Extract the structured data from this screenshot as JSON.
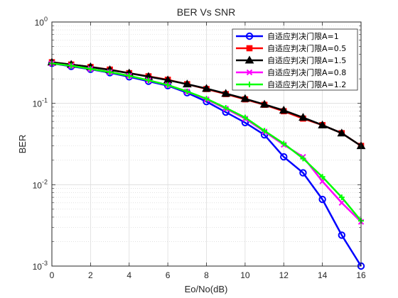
{
  "chart_data": {
    "type": "line",
    "title": "BER Vs SNR",
    "xlabel": "Eo/No(dB)",
    "ylabel": "BER",
    "xlim": [
      0,
      16
    ],
    "ylim": [
      0.001,
      1
    ],
    "yscale": "log",
    "grid": true,
    "legend_position": "top-right",
    "x_ticks": [
      "0",
      "2",
      "4",
      "6",
      "8",
      "10",
      "12",
      "14",
      "16"
    ],
    "y_ticks": [
      {
        "base": "10",
        "exp": "0"
      },
      {
        "base": "10",
        "exp": "-1"
      },
      {
        "base": "10",
        "exp": "-2"
      },
      {
        "base": "10",
        "exp": "-3"
      }
    ],
    "x": [
      0,
      1,
      2,
      3,
      4,
      5,
      6,
      7,
      8,
      9,
      10,
      11,
      12,
      13,
      14,
      15,
      16
    ],
    "series": [
      {
        "name": "自适应判决门限A=1",
        "color": "#0000ff",
        "marker": "circle",
        "values": [
          0.31,
          0.285,
          0.262,
          0.238,
          0.212,
          0.187,
          0.165,
          0.135,
          0.105,
          0.078,
          0.058,
          0.041,
          0.022,
          0.014,
          0.0066,
          0.0024,
          0.001
        ]
      },
      {
        "name": "自适应判决门限A=0.5",
        "color": "#ff0000",
        "marker": "square",
        "values": [
          0.32,
          0.3,
          0.28,
          0.26,
          0.235,
          0.215,
          0.195,
          0.172,
          0.15,
          0.13,
          0.112,
          0.096,
          0.08,
          0.065,
          0.054,
          0.043,
          0.03
        ]
      },
      {
        "name": "自适应判决门限A=1.5",
        "color": "#000000",
        "marker": "triangle",
        "values": [
          0.32,
          0.3,
          0.28,
          0.258,
          0.235,
          0.213,
          0.193,
          0.172,
          0.152,
          0.132,
          0.114,
          0.097,
          0.082,
          0.067,
          0.054,
          0.043,
          0.03
        ]
      },
      {
        "name": "自适应判决门限A=0.8",
        "color": "#ff00ff",
        "marker": "x",
        "values": [
          0.31,
          0.29,
          0.265,
          0.242,
          0.218,
          0.192,
          0.168,
          0.14,
          0.112,
          0.086,
          0.065,
          0.045,
          0.031,
          0.022,
          0.011,
          0.006,
          0.0035
        ]
      },
      {
        "name": "自适应判决门限A=1.2",
        "color": "#00ff00",
        "marker": "plus",
        "values": [
          0.31,
          0.29,
          0.265,
          0.242,
          0.218,
          0.192,
          0.168,
          0.14,
          0.114,
          0.088,
          0.067,
          0.046,
          0.032,
          0.021,
          0.0125,
          0.007,
          0.0036
        ]
      }
    ]
  }
}
